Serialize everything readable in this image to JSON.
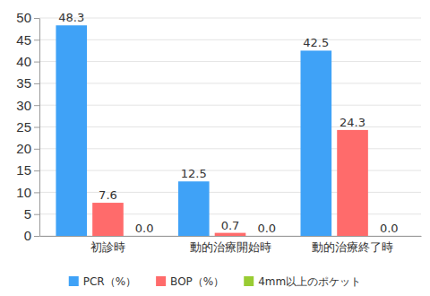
{
  "chart_data": {
    "type": "bar",
    "categories": [
      "初診時",
      "動的治療開始時",
      "動的治療終了時"
    ],
    "series": [
      {
        "name": "PCR（%）",
        "color": "#3fa2f7",
        "values": [
          48.3,
          12.5,
          42.5
        ],
        "value_labels": [
          "48.3",
          "12.5",
          "42.5"
        ]
      },
      {
        "name": "BOP（%）",
        "color": "#ff6b6b",
        "values": [
          7.6,
          0.7,
          24.3
        ],
        "value_labels": [
          "7.6",
          "0.7",
          "24.3"
        ]
      },
      {
        "name": "4mm以上のポケット",
        "color": "#99cc33",
        "values": [
          0,
          0,
          0
        ],
        "value_labels": [
          "0.0",
          "0.0",
          "0.0"
        ]
      }
    ],
    "ylim": [
      0,
      50
    ],
    "yticks": [
      0,
      5,
      10,
      15,
      20,
      25,
      30,
      35,
      40,
      45,
      50
    ],
    "grid": true,
    "legend": "bottom",
    "data_labels": true
  }
}
